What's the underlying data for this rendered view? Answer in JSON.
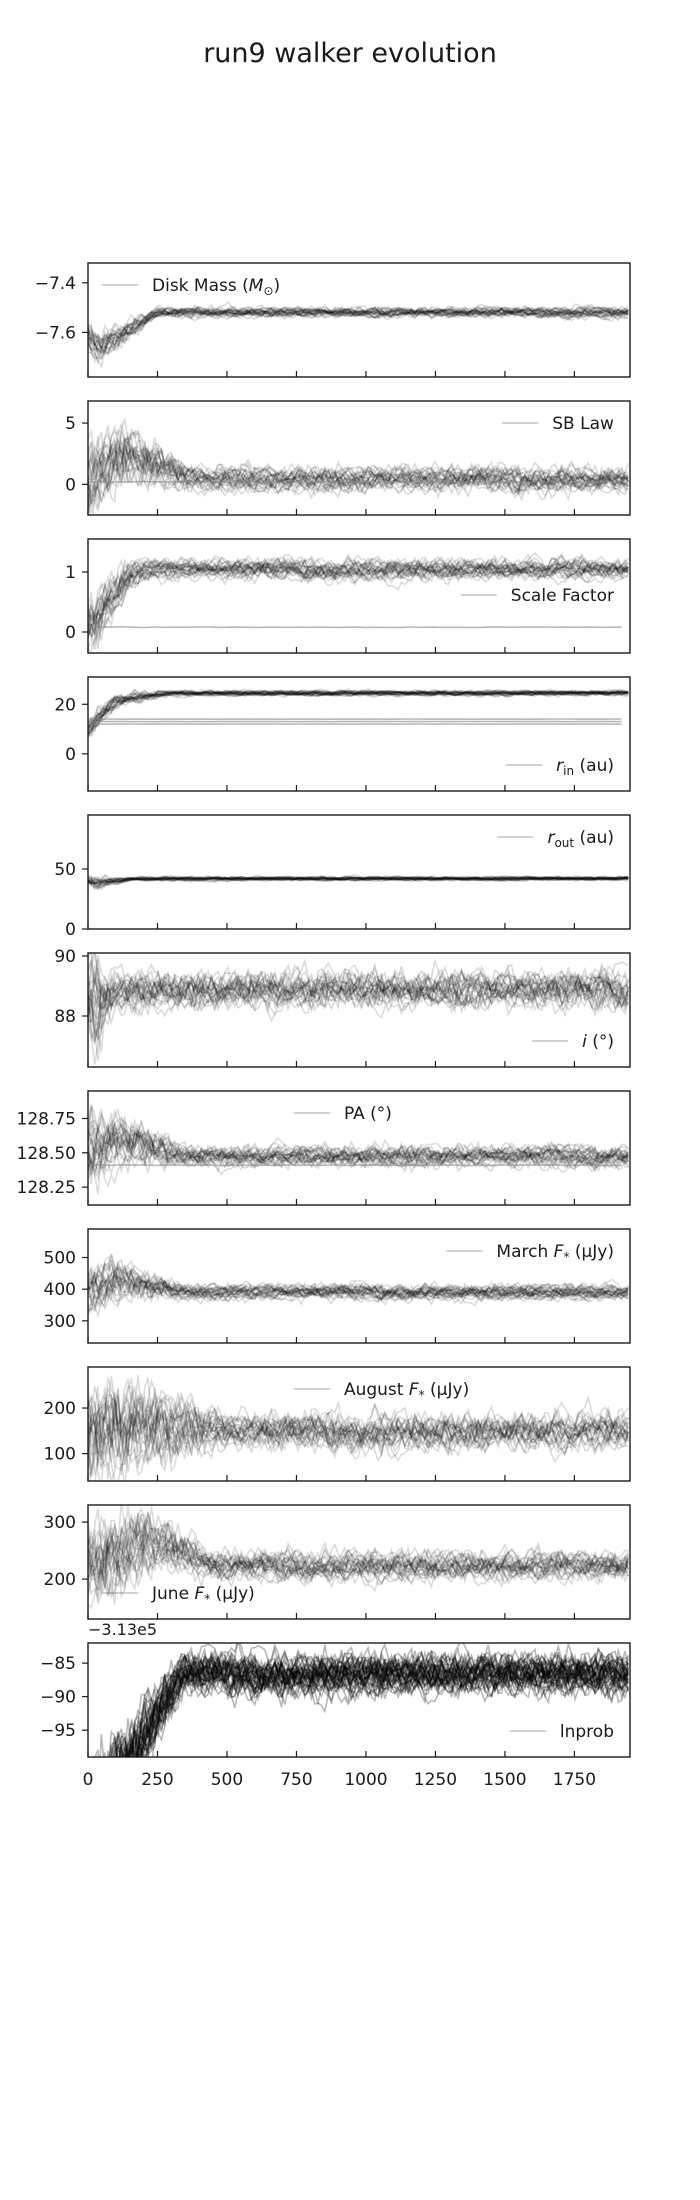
{
  "title": "run9 walker evolution",
  "chart_data": {
    "type": "line",
    "description_free": true,
    "x": {
      "ticks": [
        0,
        250,
        500,
        750,
        1000,
        1250,
        1500,
        1750
      ],
      "tick_labels": [
        "0",
        "250",
        "500",
        "750",
        "1000",
        "1250",
        "1500",
        "1750"
      ],
      "range": [
        0,
        1950
      ]
    },
    "panels": [
      {
        "legend": "Disk Mass ($M_{\\odot}$)",
        "legend_main": "Disk Mass (",
        "legend_math": "M",
        "legend_sub": "⊙",
        "legend_tail": ")",
        "legend_pos": "top-left",
        "ylim": [
          -7.78,
          -7.32
        ],
        "yticks": [
          -7.4,
          -7.6
        ],
        "ytick_labels": [
          "−7.4",
          "−7.6"
        ],
        "walkers": {
          "start": -7.62,
          "peak": -7.66,
          "peak_x": 40,
          "plateau": -7.52,
          "settle_x": 250,
          "spread": 0.015,
          "stuck": []
        }
      },
      {
        "legend": "SB Law",
        "legend_main": "SB Law",
        "legend_pos": "top-right",
        "ylim": [
          -2.5,
          6.8
        ],
        "yticks": [
          5,
          0
        ],
        "ytick_labels": [
          "5",
          "0"
        ],
        "walkers": {
          "start": 0.5,
          "peak": 2.5,
          "peak_x": 130,
          "plateau": 0.4,
          "settle_x": 400,
          "spread": 0.7,
          "stuck": [
            0.2
          ]
        }
      },
      {
        "legend": "Scale Factor",
        "legend_main": "Scale Factor",
        "legend_pos": "right",
        "ylim": [
          -0.35,
          1.55
        ],
        "yticks": [
          1,
          0
        ],
        "ytick_labels": [
          "1",
          "0"
        ],
        "walkers": {
          "start": 0.1,
          "peak": 0.95,
          "peak_x": 150,
          "plateau": 1.05,
          "settle_x": 200,
          "spread": 0.12,
          "stuck": [
            0.08
          ]
        }
      },
      {
        "legend": "r_in (au)",
        "legend_main": "",
        "legend_math": "r",
        "legend_sub": "in",
        "legend_tail": " (au)",
        "legend_pos": "bottom-right",
        "ylim": [
          -15,
          31
        ],
        "yticks": [
          20,
          0
        ],
        "ytick_labels": [
          "20",
          "0"
        ],
        "walkers": {
          "start": 10,
          "peak": 22,
          "peak_x": 100,
          "plateau": 24.5,
          "settle_x": 300,
          "spread": 0.8,
          "stuck": [
            12,
            13,
            14
          ]
        }
      },
      {
        "legend": "r_out (au)",
        "legend_main": "",
        "legend_math": "r",
        "legend_sub": "out",
        "legend_tail": " (au)",
        "legend_pos": "top-right",
        "ylim": [
          0,
          95
        ],
        "yticks": [
          50,
          0
        ],
        "ytick_labels": [
          "50",
          "0"
        ],
        "walkers": {
          "start": 40,
          "peak": 38,
          "peak_x": 40,
          "plateau": 42,
          "settle_x": 150,
          "spread": 1.2,
          "stuck": []
        }
      },
      {
        "legend": "i (°)",
        "legend_main": "",
        "legend_math": "i",
        "legend_tail": " (°)",
        "legend_pos": "bottom-right",
        "ylim": [
          86.3,
          90.1
        ],
        "yticks": [
          90,
          88
        ],
        "ytick_labels": [
          "90",
          "88"
        ],
        "walkers": {
          "start": 88.8,
          "peak": 88.8,
          "peak_x": 40,
          "plateau": 88.9,
          "settle_x": 100,
          "spread": 0.45,
          "stuck": []
        }
      },
      {
        "legend": "PA  (°)",
        "legend_main": "PA  (°)",
        "legend_pos": "top-center",
        "ylim": [
          128.12,
          128.95
        ],
        "yticks": [
          128.75,
          128.5,
          128.25
        ],
        "ytick_labels": [
          "128.75",
          "128.50",
          "128.25"
        ],
        "walkers": {
          "start": 128.5,
          "peak": 128.62,
          "peak_x": 120,
          "plateau": 128.48,
          "settle_x": 350,
          "spread": 0.055,
          "stuck": [
            128.41
          ]
        }
      },
      {
        "legend": "March F* (μJy)",
        "legend_main": "March ",
        "legend_math": "F",
        "legend_sub": "*",
        "legend_tail": " (μJy)",
        "legend_pos": "top-right",
        "ylim": [
          230,
          590
        ],
        "yticks": [
          500,
          400,
          300
        ],
        "ytick_labels": [
          "500",
          "400",
          "300"
        ],
        "walkers": {
          "start": 390,
          "peak": 430,
          "peak_x": 100,
          "plateau": 390,
          "settle_x": 350,
          "spread": 18,
          "stuck": []
        }
      },
      {
        "legend": "August F* (μJy)",
        "legend_main": "August ",
        "legend_math": "F",
        "legend_sub": "*",
        "legend_tail": " (μJy)",
        "legend_pos": "top-center",
        "ylim": [
          40,
          290
        ],
        "yticks": [
          200,
          100
        ],
        "ytick_labels": [
          "200",
          "100"
        ],
        "walkers": {
          "start": 150,
          "peak": 170,
          "peak_x": 200,
          "plateau": 150,
          "settle_x": 500,
          "spread": 28,
          "stuck": []
        }
      },
      {
        "legend": "June F* (μJy)",
        "legend_main": "June ",
        "legend_math": "F",
        "legend_sub": "*",
        "legend_tail": " (μJy)",
        "legend_pos": "bottom-left",
        "ylim": [
          130,
          330
        ],
        "yticks": [
          300,
          200
        ],
        "ytick_labels": [
          "300",
          "200"
        ],
        "walkers": {
          "start": 230,
          "peak": 270,
          "peak_x": 220,
          "plateau": 225,
          "settle_x": 450,
          "spread": 18,
          "stuck": []
        }
      },
      {
        "legend": "lnprob",
        "legend_main": "lnprob",
        "legend_pos": "bottom-right",
        "offset_text": "−3.13e5",
        "ylim": [
          -99,
          -82
        ],
        "yticks": [
          -85,
          -90,
          -95
        ],
        "ytick_labels": [
          "−85",
          "−90",
          "−95"
        ],
        "walkers": {
          "start": -110,
          "peak": -110,
          "peak_x": 0,
          "plateau": -86.5,
          "settle_x": 340,
          "spread": 2.2,
          "stuck": []
        }
      }
    ]
  }
}
